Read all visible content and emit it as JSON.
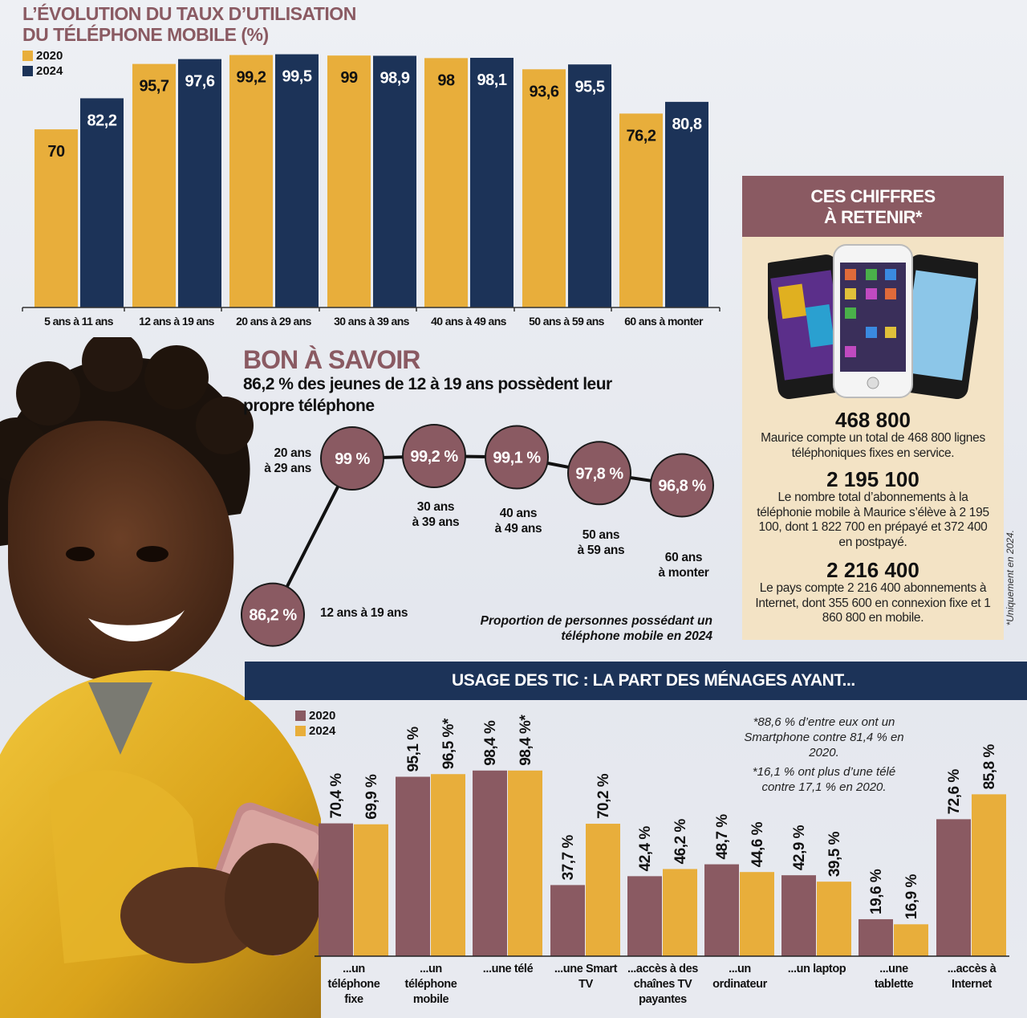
{
  "chart1": {
    "title_line1": "L’ÉVOLUTION DU TAUX D’UTILISATION",
    "title_line2": "DU TÉLÉPHONE MOBILE (%)",
    "legend": [
      "2020",
      "2024"
    ]
  },
  "colors": {
    "gold": "#e8ae3b",
    "navy": "#1c3358",
    "mauve": "#8a5a62",
    "cream": "#f3e3c5"
  },
  "keybox": {
    "title_line1": "CES CHIFFRES",
    "title_line2": "À RETENIR*",
    "figures": [
      {
        "num": "468 800",
        "text": "Maurice compte un total de 468 800 lignes téléphoniques fixes en service."
      },
      {
        "num": "2 195 100",
        "text": "Le nombre total d’abonnements à la téléphonie mobile à Maurice s’élève à 2 195 100, dont 1 822 700 en prépayé et 372 400 en postpayé."
      },
      {
        "num": "2 216 400",
        "text": "Le pays compte 2 216 400 abonnements à Internet, dont 355 600 en connexion fixe et 1 860 800 en mobile."
      }
    ],
    "side_note": "*Uniquement en 2024."
  },
  "bon_a_savoir": {
    "title": "BON À SAVOIR",
    "subtitle": "86,2 % des jeunes de 12 à 19 ans possèdent leur propre téléphone",
    "caption": "Proportion de personnes possédant un téléphone mobile en 2024"
  },
  "tic": {
    "title": "USAGE DES TIC : LA PART DES MÉNAGES AYANT...",
    "legend": [
      "2020",
      "2024"
    ],
    "note1": "*88,6 % d’entre eux ont un Smartphone contre 81,4 % en 2020.",
    "note2": "*16,1 % ont plus d’une télé contre 17,1 % en 2020."
  },
  "chart_data": [
    {
      "type": "bar",
      "categories": [
        "5 ans à 11 ans",
        "12 ans à 19 ans",
        "20 ans à 29 ans",
        "30 ans à 39 ans",
        "40 ans à 49 ans",
        "50 ans à 59 ans",
        "60 ans à monter"
      ],
      "series": [
        {
          "name": "2020",
          "values": [
            70,
            95.7,
            99.2,
            99,
            98,
            93.6,
            76.2
          ],
          "labels": [
            "70",
            "95,7",
            "99,2",
            "99",
            "98",
            "93,6",
            "76,2"
          ]
        },
        {
          "name": "2024",
          "values": [
            82.2,
            97.6,
            99.5,
            98.9,
            98.1,
            95.5,
            80.8
          ],
          "labels": [
            "82,2",
            "97,6",
            "99,5",
            "98,9",
            "98,1",
            "95,5",
            "80,8"
          ]
        }
      ],
      "title": "L’ÉVOLUTION DU TAUX D’UTILISATION DU TÉLÉPHONE MOBILE (%)",
      "ylim": [
        0,
        100
      ],
      "grid": false,
      "legend": "top-left"
    },
    {
      "type": "scatter",
      "categories": [
        "12 ans à 19 ans",
        "20 ans à 29 ans",
        "30 ans à 39 ans",
        "40 ans à 49 ans",
        "50 ans à 59 ans",
        "60 ans à monter"
      ],
      "values": [
        86.2,
        99,
        99.2,
        99.1,
        97.8,
        96.8
      ],
      "labels": [
        "86,2 %",
        "99 %",
        "99,2 %",
        "99,1 %",
        "97,8 %",
        "96,8 %"
      ],
      "title": "Proportion de personnes possédant un téléphone mobile en 2024"
    },
    {
      "type": "bar",
      "categories": [
        "...un téléphone fixe",
        "...un téléphone mobile",
        "...une télé",
        "...une Smart TV",
        "...accès à des chaînes TV payantes",
        "...un ordinateur",
        "...un laptop",
        "...une tablette",
        "...accès à Internet"
      ],
      "series": [
        {
          "name": "2020",
          "values": [
            70.4,
            95.1,
            98.4,
            37.7,
            42.4,
            48.7,
            42.9,
            19.6,
            72.6
          ],
          "labels": [
            "70,4 %",
            "95,1 %",
            "98,4 %",
            "37,7 %",
            "42,4 %",
            "48,7 %",
            "42,9 %",
            "19,6 %",
            "72,6 %"
          ]
        },
        {
          "name": "2024",
          "values": [
            69.9,
            96.5,
            98.4,
            70.2,
            46.2,
            44.6,
            39.5,
            16.9,
            85.8
          ],
          "labels": [
            "69,9 %",
            "96,5 %*",
            "98,4 %*",
            "70,2 %",
            "46,2 %",
            "44,6 %",
            "39,5 %",
            "16,9 %",
            "85,8 %"
          ]
        }
      ],
      "title": "USAGE DES TIC : LA PART DES MÉNAGES AYANT...",
      "ylim": [
        0,
        100
      ],
      "grid": false,
      "legend": "top-left"
    }
  ]
}
